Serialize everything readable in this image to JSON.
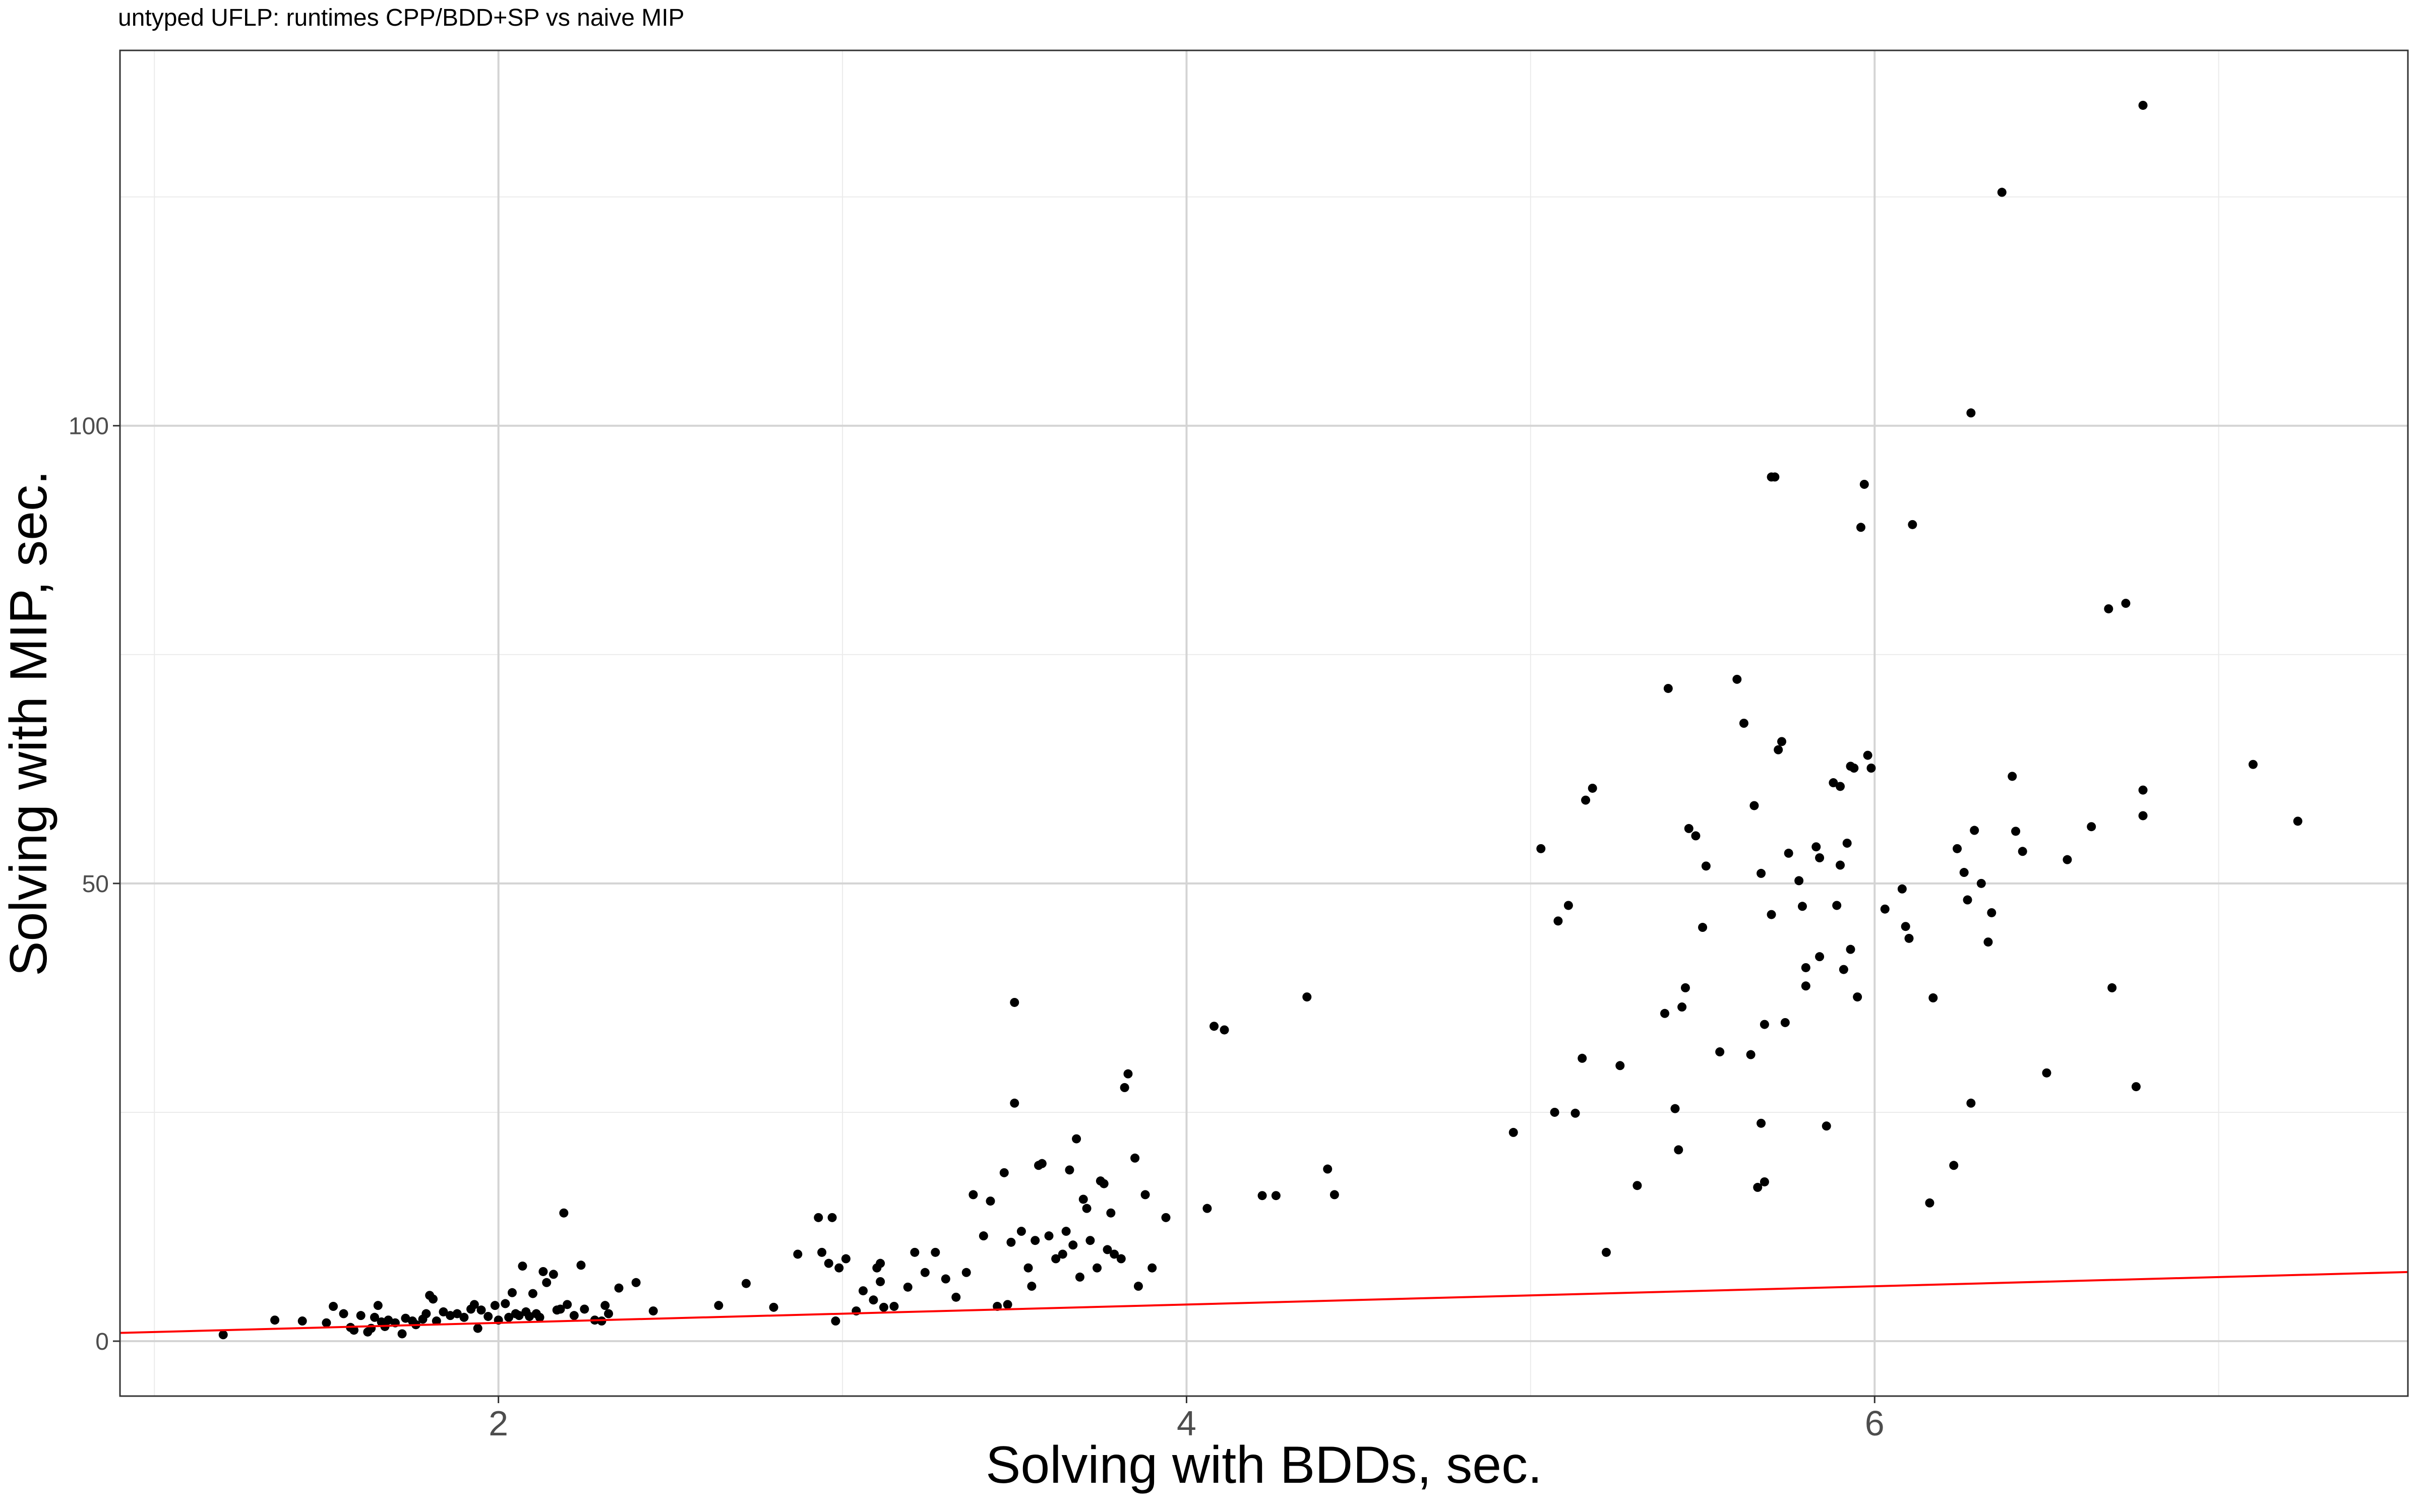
{
  "chart_data": {
    "type": "scatter",
    "title": "untyped UFLP: runtimes CPP/BDD+SP vs naive MIP",
    "xlabel": "Solving with BDDs, sec.",
    "ylabel": "Solving with MIP, sec.",
    "xlim": [
      0.9,
      7.55
    ],
    "ylim": [
      -6,
      141
    ],
    "xticks": [
      2,
      4,
      6
    ],
    "yticks": [
      0,
      50,
      100
    ],
    "xtick_labels": [
      "2",
      "4",
      "6"
    ],
    "ytick_labels": [
      "0",
      "50",
      "100"
    ],
    "xgrid_minor": [
      1,
      3,
      5,
      7
    ],
    "ygrid_minor": [
      25,
      75,
      125
    ],
    "grid": true,
    "legend": "none",
    "point_color": "#000000",
    "line_color": "#ff0000",
    "reference_line": {
      "type": "y=x"
    },
    "series": [
      {
        "points": [
          [
            1.2,
            0.7
          ],
          [
            1.35,
            2.3
          ],
          [
            1.43,
            2.2
          ],
          [
            1.5,
            2.0
          ],
          [
            1.52,
            3.8
          ],
          [
            1.55,
            3.0
          ],
          [
            1.57,
            1.5
          ],
          [
            1.58,
            1.2
          ],
          [
            1.6,
            2.8
          ],
          [
            1.62,
            1.0
          ],
          [
            1.63,
            1.4
          ],
          [
            1.64,
            2.6
          ],
          [
            1.65,
            3.9
          ],
          [
            1.66,
            2.1
          ],
          [
            1.67,
            1.6
          ],
          [
            1.68,
            2.3
          ],
          [
            1.7,
            2.0
          ],
          [
            1.72,
            0.8
          ],
          [
            1.73,
            2.5
          ],
          [
            1.75,
            2.2
          ],
          [
            1.76,
            1.8
          ],
          [
            1.78,
            2.4
          ],
          [
            1.79,
            3.0
          ],
          [
            1.8,
            5.0
          ],
          [
            1.81,
            4.6
          ],
          [
            1.82,
            2.2
          ],
          [
            1.84,
            3.2
          ],
          [
            1.86,
            2.8
          ],
          [
            1.88,
            3.0
          ],
          [
            1.9,
            2.6
          ],
          [
            1.92,
            3.5
          ],
          [
            1.93,
            4.0
          ],
          [
            1.94,
            1.4
          ],
          [
            1.95,
            3.4
          ],
          [
            1.97,
            2.7
          ],
          [
            1.99,
            3.9
          ],
          [
            2.0,
            2.3
          ],
          [
            2.02,
            4.1
          ],
          [
            2.03,
            2.6
          ],
          [
            2.04,
            5.3
          ],
          [
            2.05,
            3.0
          ],
          [
            2.06,
            2.8
          ],
          [
            2.07,
            8.2
          ],
          [
            2.08,
            3.2
          ],
          [
            2.09,
            2.7
          ],
          [
            2.1,
            5.2
          ],
          [
            2.11,
            3.0
          ],
          [
            2.12,
            2.6
          ],
          [
            2.13,
            7.6
          ],
          [
            2.14,
            6.4
          ],
          [
            2.16,
            7.3
          ],
          [
            2.17,
            3.4
          ],
          [
            2.18,
            3.5
          ],
          [
            2.19,
            14.0
          ],
          [
            2.2,
            4.0
          ],
          [
            2.22,
            2.8
          ],
          [
            2.24,
            8.3
          ],
          [
            2.25,
            3.5
          ],
          [
            2.28,
            2.3
          ],
          [
            2.3,
            2.2
          ],
          [
            2.31,
            3.9
          ],
          [
            2.32,
            3.0
          ],
          [
            2.35,
            5.8
          ],
          [
            2.4,
            6.4
          ],
          [
            2.45,
            3.3
          ],
          [
            2.64,
            3.9
          ],
          [
            2.72,
            6.3
          ],
          [
            2.8,
            3.7
          ],
          [
            2.87,
            9.5
          ],
          [
            2.93,
            13.5
          ],
          [
            2.94,
            9.7
          ],
          [
            2.96,
            8.5
          ],
          [
            2.97,
            13.5
          ],
          [
            2.98,
            2.2
          ],
          [
            2.99,
            8.0
          ],
          [
            3.01,
            9.0
          ],
          [
            3.04,
            3.3
          ],
          [
            3.06,
            5.5
          ],
          [
            3.09,
            4.5
          ],
          [
            3.1,
            8.0
          ],
          [
            3.11,
            6.5
          ],
          [
            3.11,
            8.5
          ],
          [
            3.12,
            3.7
          ],
          [
            3.15,
            3.8
          ],
          [
            3.19,
            5.9
          ],
          [
            3.21,
            9.7
          ],
          [
            3.24,
            7.5
          ],
          [
            3.27,
            9.7
          ],
          [
            3.3,
            6.8
          ],
          [
            3.33,
            4.8
          ],
          [
            3.36,
            7.5
          ],
          [
            3.38,
            16.0
          ],
          [
            3.41,
            11.5
          ],
          [
            3.43,
            15.3
          ],
          [
            3.45,
            3.8
          ],
          [
            3.47,
            18.4
          ],
          [
            3.48,
            4.0
          ],
          [
            3.49,
            10.8
          ],
          [
            3.5,
            26.0
          ],
          [
            3.5,
            37.0
          ],
          [
            3.52,
            12.0
          ],
          [
            3.54,
            8.0
          ],
          [
            3.55,
            6.0
          ],
          [
            3.56,
            11.0
          ],
          [
            3.57,
            19.2
          ],
          [
            3.58,
            19.4
          ],
          [
            3.6,
            11.5
          ],
          [
            3.62,
            9.0
          ],
          [
            3.64,
            9.5
          ],
          [
            3.65,
            12.0
          ],
          [
            3.66,
            18.7
          ],
          [
            3.67,
            10.5
          ],
          [
            3.68,
            22.1
          ],
          [
            3.69,
            7.0
          ],
          [
            3.7,
            15.5
          ],
          [
            3.71,
            14.5
          ],
          [
            3.72,
            11.0
          ],
          [
            3.74,
            8.0
          ],
          [
            3.75,
            17.5
          ],
          [
            3.76,
            17.2
          ],
          [
            3.77,
            10.0
          ],
          [
            3.78,
            14.0
          ],
          [
            3.79,
            9.5
          ],
          [
            3.81,
            9.0
          ],
          [
            3.82,
            27.7
          ],
          [
            3.83,
            29.2
          ],
          [
            3.85,
            20.0
          ],
          [
            3.86,
            6.0
          ],
          [
            3.88,
            16.0
          ],
          [
            3.9,
            8.0
          ],
          [
            3.94,
            13.5
          ],
          [
            4.06,
            14.5
          ],
          [
            4.08,
            34.4
          ],
          [
            4.11,
            34.0
          ],
          [
            4.22,
            15.9
          ],
          [
            4.26,
            15.9
          ],
          [
            4.35,
            37.6
          ],
          [
            4.41,
            18.8
          ],
          [
            4.43,
            16.0
          ],
          [
            4.95,
            22.8
          ],
          [
            5.03,
            53.8
          ],
          [
            5.07,
            25.0
          ],
          [
            5.08,
            45.9
          ],
          [
            5.11,
            47.6
          ],
          [
            5.13,
            24.9
          ],
          [
            5.15,
            30.9
          ],
          [
            5.16,
            59.1
          ],
          [
            5.18,
            60.4
          ],
          [
            5.22,
            9.7
          ],
          [
            5.26,
            30.1
          ],
          [
            5.31,
            17.0
          ],
          [
            5.39,
            35.8
          ],
          [
            5.4,
            71.3
          ],
          [
            5.42,
            25.4
          ],
          [
            5.43,
            20.9
          ],
          [
            5.44,
            36.5
          ],
          [
            5.45,
            38.6
          ],
          [
            5.46,
            56.0
          ],
          [
            5.48,
            55.2
          ],
          [
            5.5,
            45.2
          ],
          [
            5.51,
            51.9
          ],
          [
            5.55,
            31.6
          ],
          [
            5.6,
            72.3
          ],
          [
            5.62,
            67.5
          ],
          [
            5.64,
            31.3
          ],
          [
            5.65,
            58.5
          ],
          [
            5.66,
            16.8
          ],
          [
            5.67,
            23.8
          ],
          [
            5.67,
            51.1
          ],
          [
            5.68,
            34.6
          ],
          [
            5.68,
            17.4
          ],
          [
            5.7,
            46.6
          ],
          [
            5.71,
            94.4
          ],
          [
            5.72,
            64.6
          ],
          [
            5.73,
            65.5
          ],
          [
            5.74,
            34.8
          ],
          [
            5.75,
            53.3
          ],
          [
            5.78,
            50.3
          ],
          [
            5.79,
            47.5
          ],
          [
            5.8,
            40.8
          ],
          [
            5.8,
            38.8
          ],
          [
            5.83,
            54.0
          ],
          [
            5.84,
            52.8
          ],
          [
            5.84,
            42.0
          ],
          [
            5.86,
            23.5
          ],
          [
            5.88,
            61.0
          ],
          [
            5.89,
            47.6
          ],
          [
            5.9,
            60.6
          ],
          [
            5.9,
            52.0
          ],
          [
            5.91,
            40.6
          ],
          [
            5.92,
            54.4
          ],
          [
            5.93,
            62.8
          ],
          [
            5.93,
            42.8
          ],
          [
            5.94,
            62.6
          ],
          [
            5.95,
            37.6
          ],
          [
            5.96,
            88.9
          ],
          [
            5.97,
            93.6
          ],
          [
            5.98,
            64.0
          ],
          [
            5.99,
            62.6
          ],
          [
            6.03,
            47.2
          ],
          [
            6.08,
            49.4
          ],
          [
            6.09,
            45.3
          ],
          [
            6.1,
            44.0
          ],
          [
            6.11,
            89.2
          ],
          [
            6.17,
            37.5
          ],
          [
            6.23,
            19.2
          ],
          [
            6.24,
            53.8
          ],
          [
            6.26,
            51.2
          ],
          [
            6.27,
            48.2
          ],
          [
            6.28,
            26.0
          ],
          [
            6.28,
            101.4
          ],
          [
            6.29,
            55.8
          ],
          [
            6.31,
            50.0
          ],
          [
            6.33,
            43.6
          ],
          [
            6.34,
            46.8
          ],
          [
            6.37,
            125.5
          ],
          [
            6.4,
            61.7
          ],
          [
            6.41,
            55.7
          ],
          [
            6.43,
            53.5
          ],
          [
            6.5,
            29.3
          ],
          [
            6.56,
            52.6
          ],
          [
            6.63,
            56.2
          ],
          [
            6.68,
            80.0
          ],
          [
            6.69,
            38.6
          ],
          [
            6.73,
            80.6
          ],
          [
            6.76,
            27.8
          ],
          [
            6.78,
            60.2
          ],
          [
            6.78,
            135.0
          ],
          [
            6.78,
            57.4
          ],
          [
            6.16,
            15.1
          ],
          [
            7.1,
            63.0
          ],
          [
            7.23,
            56.8
          ],
          [
            5.7,
            94.4
          ]
        ]
      }
    ]
  }
}
